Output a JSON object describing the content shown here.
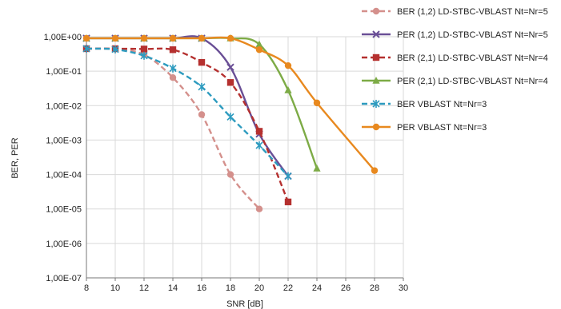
{
  "chart_data": {
    "type": "line",
    "xlabel": "SNR [dB]",
    "ylabel": "BER, PER",
    "xlim": [
      8,
      30
    ],
    "xticks": [
      8,
      10,
      12,
      14,
      16,
      18,
      20,
      22,
      24,
      26,
      28,
      30
    ],
    "ylim": [
      1e-07,
      1
    ],
    "yscale": "log",
    "yticks": [
      1,
      0.1,
      0.01,
      0.001,
      0.0001,
      1e-05,
      1e-06,
      1e-07
    ],
    "ytick_labels": [
      "1,00E+00",
      "1,00E-01",
      "1,00E-02",
      "1,00E-03",
      "1,00E-04",
      "1,00E-05",
      "1,00E-06",
      "1,00E-07"
    ],
    "grid": true,
    "legend_position": "right",
    "series": [
      {
        "name": "BER (1,2) LD-STBC-VBLAST Nt=Nr=5",
        "color": "#d4908c",
        "dash": "dashed",
        "marker": "circle",
        "x": [
          8,
          10,
          12,
          14,
          16,
          18,
          20
        ],
        "y": [
          0.45,
          0.44,
          0.3,
          0.065,
          0.0055,
          0.0001,
          1e-05
        ]
      },
      {
        "name": "PER (1,2) LD-STBC-VBLAST Nt=Nr=5",
        "color": "#6a4f96",
        "dash": "solid",
        "marker": "x",
        "x": [
          8,
          10,
          12,
          14,
          16,
          18,
          20,
          22
        ],
        "y": [
          0.9,
          0.9,
          0.9,
          0.9,
          0.9,
          0.13,
          0.0015,
          9e-05
        ]
      },
      {
        "name": "BER (2,1) LD-STBC-VBLAST Nt=Nr=4",
        "color": "#b5302f",
        "dash": "dashed",
        "marker": "square",
        "x": [
          8,
          10,
          12,
          14,
          16,
          18,
          20,
          22
        ],
        "y": [
          0.45,
          0.45,
          0.44,
          0.42,
          0.18,
          0.047,
          0.0018,
          1.6e-05
        ]
      },
      {
        "name": "PER (2,1) LD-STBC-VBLAST Nt=Nr=4",
        "color": "#7dab46",
        "dash": "solid",
        "marker": "triangle",
        "x": [
          8,
          10,
          12,
          14,
          16,
          18,
          20,
          22,
          24
        ],
        "y": [
          0.9,
          0.9,
          0.9,
          0.9,
          0.9,
          0.9,
          0.6,
          0.028,
          0.00015
        ]
      },
      {
        "name": "BER VBLAST Nt=Nr=3",
        "color": "#2d9bbf",
        "dash": "dashed",
        "marker": "star",
        "x": [
          8,
          10,
          12,
          14,
          16,
          18,
          20,
          22
        ],
        "y": [
          0.45,
          0.43,
          0.28,
          0.12,
          0.035,
          0.0047,
          0.0007,
          9e-05
        ]
      },
      {
        "name": "PER VBLAST Nt=Nr=3",
        "color": "#e8891f",
        "dash": "solid",
        "marker": "circle",
        "x": [
          8,
          10,
          12,
          14,
          16,
          18,
          20,
          22,
          24,
          28
        ],
        "y": [
          0.9,
          0.9,
          0.9,
          0.9,
          0.9,
          0.9,
          0.42,
          0.145,
          0.012,
          0.00013
        ]
      }
    ]
  }
}
